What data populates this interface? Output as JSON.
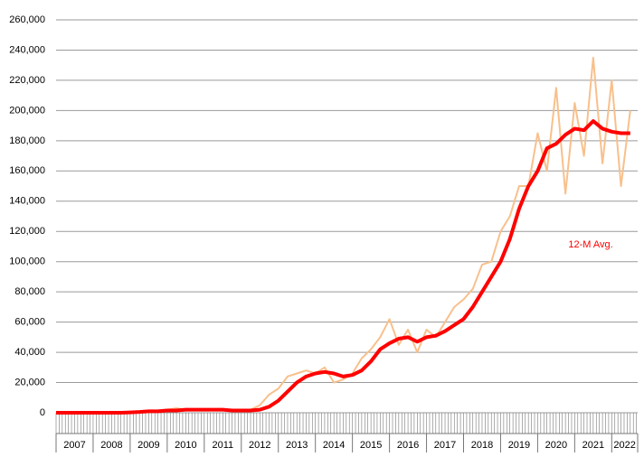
{
  "chart_data": {
    "type": "line",
    "annotation": "12-M Avg.",
    "x": [
      2007,
      2007.25,
      2007.5,
      2007.75,
      2008,
      2008.25,
      2008.5,
      2008.75,
      2009,
      2009.25,
      2009.5,
      2009.75,
      2010,
      2010.25,
      2010.5,
      2010.75,
      2011,
      2011.25,
      2011.5,
      2011.75,
      2012,
      2012.25,
      2012.5,
      2012.75,
      2013,
      2013.25,
      2013.5,
      2013.75,
      2014,
      2014.25,
      2014.5,
      2014.75,
      2015,
      2015.25,
      2015.5,
      2015.75,
      2016,
      2016.25,
      2016.5,
      2016.75,
      2017,
      2017.25,
      2017.5,
      2017.75,
      2018,
      2018.25,
      2018.5,
      2018.75,
      2019,
      2019.25,
      2019.5,
      2019.75,
      2020,
      2020.25,
      2020.5,
      2020.75,
      2021,
      2021.25,
      2021.5,
      2021.75,
      2022,
      2022.25,
      2022.5
    ],
    "series": [
      {
        "color": "#f8c08c",
        "width": 2,
        "values": [
          0,
          0,
          0,
          0,
          0,
          0,
          0,
          0,
          0,
          500,
          1000,
          1500,
          2000,
          3000,
          2000,
          2000,
          2000,
          2000,
          2000,
          1500,
          1500,
          2000,
          5000,
          12000,
          16000,
          24000,
          26000,
          28000,
          26000,
          30000,
          20000,
          22000,
          26000,
          36000,
          42000,
          50000,
          62000,
          45000,
          55000,
          40000,
          55000,
          50000,
          60000,
          70000,
          75000,
          82000,
          98000,
          100000,
          120000,
          130000,
          150000,
          150000,
          185000,
          160000,
          215000,
          145000,
          205000,
          170000,
          235000,
          165000,
          220000,
          150000,
          200000
        ]
      },
      {
        "color": "#ff0000",
        "width": 4,
        "values": [
          0,
          0,
          0,
          0,
          0,
          0,
          0,
          0,
          200,
          500,
          1000,
          1000,
          1500,
          1500,
          2000,
          2000,
          2000,
          2000,
          2000,
          1500,
          1500,
          1500,
          2000,
          4000,
          8000,
          14000,
          20000,
          24000,
          26000,
          27000,
          26000,
          24000,
          25000,
          28000,
          34000,
          42000,
          46000,
          49000,
          50000,
          47000,
          50000,
          51000,
          54000,
          58000,
          62000,
          70000,
          80000,
          90000,
          100000,
          115000,
          135000,
          150000,
          160000,
          175000,
          178000,
          184000,
          188000,
          187000,
          193000,
          188000,
          186000,
          185000,
          185000
        ]
      }
    ],
    "xlim": [
      2007,
      2022.7
    ],
    "xticks": [
      2007,
      2008,
      2009,
      2010,
      2011,
      2012,
      2013,
      2014,
      2015,
      2016,
      2017,
      2018,
      2019,
      2020,
      2021,
      2022
    ],
    "ylim": [
      0,
      260000
    ],
    "yticks": [
      0,
      {
        "value": 20000,
        "label": "20,000"
      },
      {
        "value": 40000,
        "label": "40,000"
      },
      {
        "value": 60000,
        "label": "60,000"
      },
      {
        "value": 80000,
        "label": "80,000"
      },
      {
        "value": 100000,
        "label": "100,000"
      },
      {
        "value": 120000,
        "label": "120,000"
      },
      {
        "value": 140000,
        "label": "140,000"
      },
      {
        "value": 160000,
        "label": "160,000"
      },
      {
        "value": 180000,
        "label": "180,000"
      },
      {
        "value": 200000,
        "label": "200,000"
      },
      {
        "value": 220000,
        "label": "220,000"
      },
      {
        "value": 240000,
        "label": "240,000"
      },
      {
        "value": 260000,
        "label": "260,000"
      }
    ],
    "grid": true
  }
}
